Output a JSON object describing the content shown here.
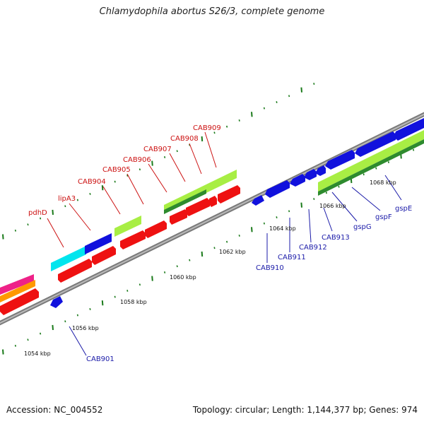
{
  "title": "Chlamydophila abortus S26/3, complete genome",
  "footer": {
    "accession": "Accession: NC_004552",
    "summary": "Topology: circular; Length: 1,144,377 bp; Genes: 974"
  },
  "colors": {
    "backbone": "#7a7a7a",
    "forward_gene": "#ee1111",
    "reverse_gene": "#1111dd",
    "feature_cyan": "#00e5ee",
    "feature_lime": "#a8ee44",
    "feature_green": "#2e8b2e",
    "feature_pink": "#ee2288",
    "feature_orange": "#ff9900",
    "tick": "#1a7a1a",
    "label_forward": "#cc1111",
    "label_reverse": "#1a1aa8"
  },
  "scale_labels": [
    "1054 kbp",
    "1056 kbp",
    "1058 kbp",
    "1060 kbp",
    "1062 kbp",
    "1064 kbp",
    "1066 kbp",
    "1068 kbp"
  ],
  "forward_labels": [
    "pdhD",
    "lipA3",
    "CAB904",
    "CAB905",
    "CAB906",
    "CAB907",
    "CAB908",
    "CAB909"
  ],
  "reverse_labels": [
    "CAB901",
    "CAB910",
    "CAB911",
    "CAB912",
    "CAB913",
    "gspG",
    "gspF",
    "gspE"
  ]
}
